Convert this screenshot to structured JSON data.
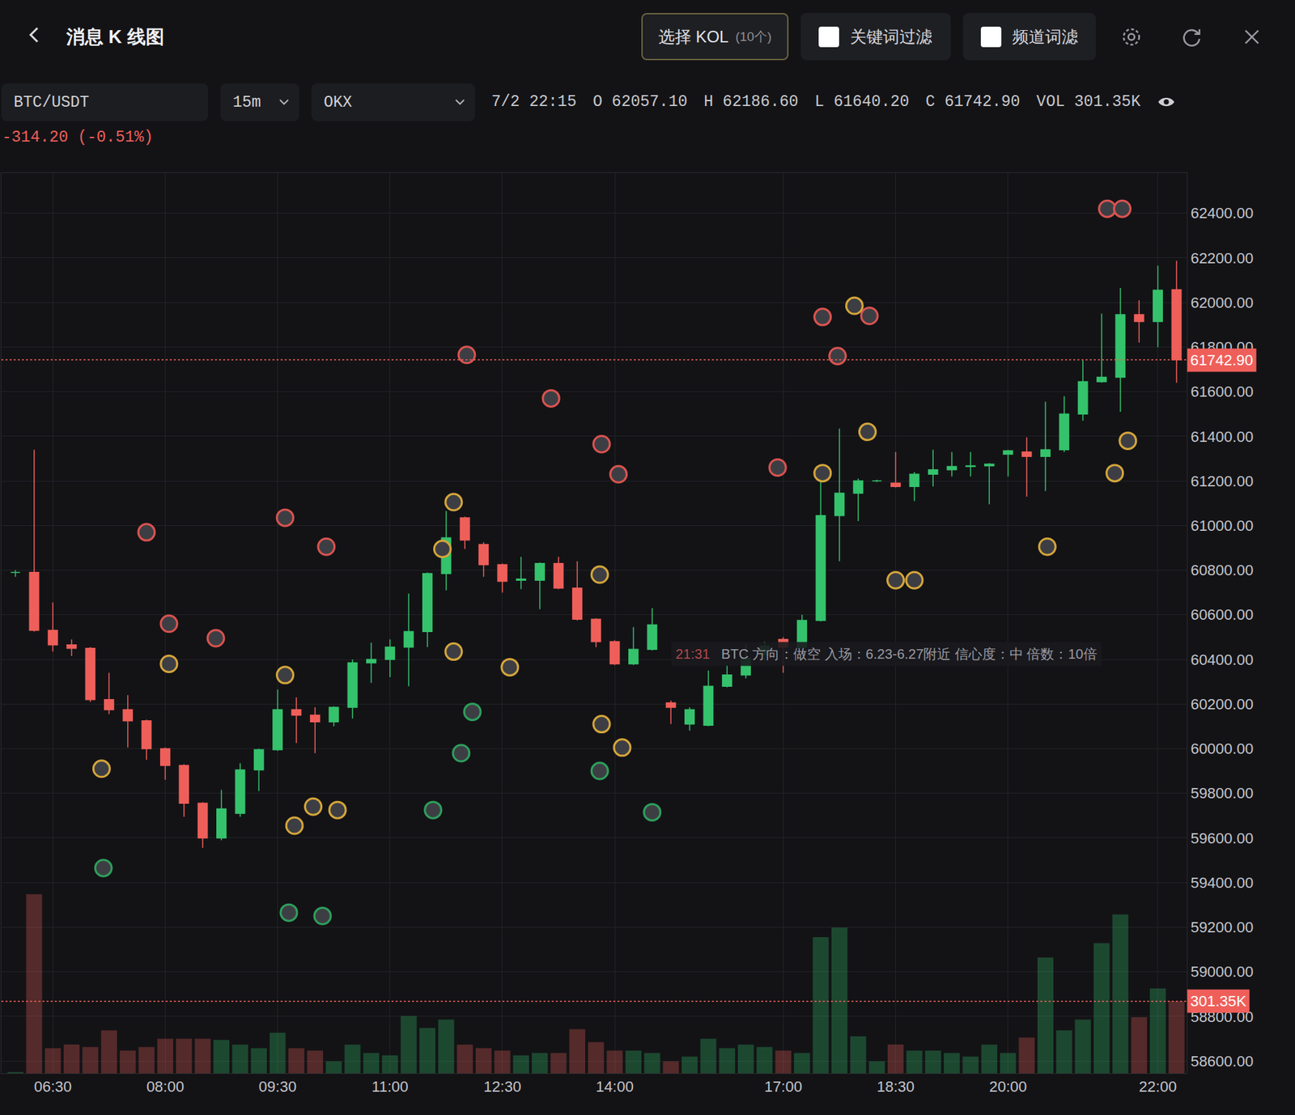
{
  "header": {
    "title": "消息 K 线图",
    "kol_button": "选择 KOL",
    "kol_count": "(10个)",
    "filters": [
      "关键词过滤",
      "频道词滤"
    ]
  },
  "toolbar": {
    "symbol": "BTC/USDT",
    "interval": "15m",
    "exchange": "OKX",
    "time": "7/2 22:15",
    "ohlcv": [
      {
        "label": "O",
        "value": "62057.10"
      },
      {
        "label": "H",
        "value": "62186.60"
      },
      {
        "label": "L",
        "value": "61640.20"
      },
      {
        "label": "C",
        "value": "61742.90"
      },
      {
        "label": "VOL",
        "value": "301.35K"
      }
    ],
    "change": "-314.20 (-0.51%)"
  },
  "chart_data": {
    "type": "candlestick",
    "categories": [
      null,
      null,
      "06:30",
      null,
      null,
      null,
      null,
      null,
      "08:00",
      null,
      null,
      null,
      null,
      null,
      "09:30",
      null,
      null,
      null,
      null,
      null,
      "11:00",
      null,
      null,
      null,
      null,
      null,
      "12:30",
      null,
      null,
      null,
      null,
      null,
      "14:00",
      null,
      null,
      null,
      null,
      null,
      null,
      null,
      null,
      "17:00",
      null,
      null,
      null,
      null,
      null,
      "18:30",
      null,
      null,
      null,
      null,
      null,
      "20:00",
      null,
      null,
      null,
      null,
      null,
      null,
      null,
      "22:00",
      null
    ],
    "series": [
      {
        "name": "O",
        "values": [
          60790,
          60790,
          60530,
          60465,
          60450,
          60220,
          60175,
          60125,
          60000,
          59925,
          59755,
          59600,
          59710,
          59905,
          59995,
          60175,
          60150,
          60120,
          60185,
          60385,
          60400,
          60455,
          60525,
          60785,
          61035,
          60915,
          60825,
          60755,
          60755,
          60830,
          60720,
          60580,
          60480,
          60380,
          60445,
          60205,
          60110,
          60105,
          60280,
          60330,
          60420,
          60490,
          60455,
          60575,
          61045,
          61145,
          61200,
          61190,
          61175,
          61230,
          61250,
          61265,
          61268,
          61320,
          61330,
          61310,
          61340,
          61500,
          61645,
          61665,
          61945,
          61915,
          62057.1
        ]
      },
      {
        "name": "H",
        "values": [
          60800,
          61340,
          60655,
          60490,
          60455,
          60340,
          60240,
          60130,
          60005,
          59930,
          59760,
          59815,
          59935,
          60000,
          60265,
          60230,
          60185,
          60190,
          60400,
          60475,
          60490,
          60695,
          60790,
          61065,
          61040,
          60925,
          60830,
          60860,
          60835,
          60860,
          60840,
          60585,
          60485,
          60545,
          60630,
          60215,
          60185,
          60350,
          60375,
          60470,
          60480,
          60500,
          60600,
          61210,
          61435,
          61210,
          61205,
          61330,
          61240,
          61340,
          61330,
          61330,
          61280,
          61340,
          61395,
          61555,
          61580,
          61740,
          61950,
          62065,
          62010,
          62165,
          62186.6
        ]
      },
      {
        "name": "L",
        "values": [
          60770,
          60525,
          60435,
          60415,
          60210,
          60155,
          60005,
          59950,
          59860,
          59695,
          59555,
          59590,
          59695,
          59810,
          59990,
          60025,
          59980,
          60100,
          60135,
          60295,
          60320,
          60280,
          60455,
          60710,
          60895,
          60770,
          60700,
          60715,
          60625,
          60715,
          60575,
          60455,
          60375,
          60375,
          60440,
          60110,
          60080,
          60100,
          60275,
          60315,
          60395,
          60340,
          60450,
          60570,
          60840,
          61020,
          61195,
          61170,
          61110,
          61175,
          61220,
          61220,
          61095,
          61220,
          61130,
          61155,
          61330,
          61470,
          61640,
          61510,
          61820,
          61800,
          61640.2
        ]
      },
      {
        "name": "C",
        "values": [
          60790,
          60530,
          60465,
          60450,
          60220,
          60175,
          60125,
          60000,
          59925,
          59755,
          59600,
          59730,
          59905,
          59995,
          60175,
          60150,
          60120,
          60185,
          60385,
          60400,
          60455,
          60525,
          60785,
          60945,
          60935,
          60825,
          60750,
          60760,
          60830,
          60720,
          60580,
          60480,
          60380,
          60445,
          60555,
          60185,
          60175,
          60280,
          60330,
          60405,
          60460,
          60455,
          60575,
          61045,
          61145,
          61200,
          61200,
          61175,
          61230,
          61250,
          61265,
          61268,
          61275,
          61335,
          61310,
          61340,
          61500,
          61645,
          61665,
          61945,
          61915,
          62055,
          61742.9
        ]
      },
      {
        "name": "VOL",
        "type": "bar",
        "axis": "y2",
        "values": [
          5,
          750,
          105,
          120,
          110,
          180,
          95,
          110,
          145,
          145,
          145,
          140,
          120,
          105,
          170,
          105,
          95,
          50,
          120,
          85,
          75,
          240,
          190,
          225,
          120,
          105,
          95,
          75,
          85,
          85,
          185,
          130,
          95,
          95,
          85,
          50,
          70,
          145,
          105,
          120,
          110,
          95,
          85,
          570,
          610,
          155,
          50,
          120,
          95,
          95,
          85,
          70,
          120,
          85,
          150,
          485,
          180,
          225,
          545,
          665,
          235,
          355,
          301.35
        ]
      }
    ],
    "colors": [
      "#35c26c",
      "#ef5f5a"
    ],
    "xlim": [
      -0.75,
      62.55
    ],
    "ylim": [
      58545,
      62580
    ],
    "yticks": [
      {
        "value": 58600,
        "label": "58600.00"
      },
      {
        "value": 58800,
        "label": "58800.00"
      },
      {
        "value": 59000,
        "label": "59000.00"
      },
      {
        "value": 59200,
        "label": "59200.00"
      },
      {
        "value": 59400,
        "label": "59400.00"
      },
      {
        "value": 59600,
        "label": "59600.00"
      },
      {
        "value": 59800,
        "label": "59800.00"
      },
      {
        "value": 60000,
        "label": "60000.00"
      },
      {
        "value": 60200,
        "label": "60200.00"
      },
      {
        "value": 60400,
        "label": "60400.00"
      },
      {
        "value": 60600,
        "label": "60600.00"
      },
      {
        "value": 60800,
        "label": "60800.00"
      },
      {
        "value": 61000,
        "label": "61000.00"
      },
      {
        "value": 61200,
        "label": "61200.00"
      },
      {
        "value": 61400,
        "label": "61400.00"
      },
      {
        "value": 61600,
        "label": "61600.00"
      },
      {
        "value": 61800,
        "label": "61800.00"
      },
      {
        "value": 62000,
        "label": "62000.00"
      },
      {
        "value": 62200,
        "label": "62200.00"
      },
      {
        "value": 62400,
        "label": "62400.00"
      }
    ],
    "y2lim": [
      0,
      3770
    ],
    "grid": true,
    "price_line": {
      "value": 61742.9,
      "label": "61742.90",
      "color": "#ef5f5a"
    },
    "volume_line": {
      "value": 301.35,
      "label": "301.35K",
      "color": "#ef5f5a"
    },
    "annotations": [
      {
        "x": 35,
        "y": 60425,
        "time": "21:31",
        "text": "BTC 方向：做空 入场：6.23-6.27附近 信心度：中 倍数：10倍"
      }
    ],
    "messages": [
      {
        "x": 7,
        "y": 60970,
        "color": "#d9534f"
      },
      {
        "x": 14.4,
        "y": 61035,
        "color": "#d9534f"
      },
      {
        "x": 16.6,
        "y": 60905,
        "color": "#d9534f"
      },
      {
        "x": 8.2,
        "y": 60560,
        "color": "#d9534f"
      },
      {
        "x": 10.7,
        "y": 60495,
        "color": "#d9534f"
      },
      {
        "x": 24.1,
        "y": 61765,
        "color": "#d9534f"
      },
      {
        "x": 28.6,
        "y": 61570,
        "color": "#d9534f"
      },
      {
        "x": 31.3,
        "y": 61365,
        "color": "#d9534f"
      },
      {
        "x": 32.2,
        "y": 61230,
        "color": "#d9534f"
      },
      {
        "x": 40.7,
        "y": 61260,
        "color": "#d9534f"
      },
      {
        "x": 43.1,
        "y": 61935,
        "color": "#d9534f"
      },
      {
        "x": 43.9,
        "y": 61760,
        "color": "#d9534f"
      },
      {
        "x": 45.6,
        "y": 61940,
        "color": "#d9534f"
      },
      {
        "x": 58.3,
        "y": 62420,
        "color": "#d9534f"
      },
      {
        "x": 59.1,
        "y": 62420,
        "color": "#d9534f"
      },
      {
        "x": 8.2,
        "y": 60380,
        "color": "#d4a53a"
      },
      {
        "x": 4.6,
        "y": 59910,
        "color": "#d4a53a"
      },
      {
        "x": 14.4,
        "y": 60330,
        "color": "#d4a53a"
      },
      {
        "x": 15.9,
        "y": 59740,
        "color": "#d4a53a"
      },
      {
        "x": 17.2,
        "y": 59725,
        "color": "#d4a53a"
      },
      {
        "x": 14.9,
        "y": 59655,
        "color": "#d4a53a"
      },
      {
        "x": 23.4,
        "y": 61105,
        "color": "#d4a53a"
      },
      {
        "x": 22.8,
        "y": 60895,
        "color": "#d4a53a"
      },
      {
        "x": 23.4,
        "y": 60435,
        "color": "#d4a53a"
      },
      {
        "x": 26.4,
        "y": 60365,
        "color": "#d4a53a"
      },
      {
        "x": 31.2,
        "y": 60780,
        "color": "#d4a53a"
      },
      {
        "x": 31.3,
        "y": 60110,
        "color": "#d4a53a"
      },
      {
        "x": 32.4,
        "y": 60005,
        "color": "#d4a53a"
      },
      {
        "x": 43.1,
        "y": 61235,
        "color": "#d4a53a"
      },
      {
        "x": 44.8,
        "y": 61985,
        "color": "#d4a53a"
      },
      {
        "x": 45.5,
        "y": 61420,
        "color": "#d4a53a"
      },
      {
        "x": 47.0,
        "y": 60755,
        "color": "#d4a53a"
      },
      {
        "x": 48.0,
        "y": 60755,
        "color": "#d4a53a"
      },
      {
        "x": 55.1,
        "y": 60905,
        "color": "#d4a53a"
      },
      {
        "x": 58.7,
        "y": 61235,
        "color": "#d4a53a"
      },
      {
        "x": 59.4,
        "y": 61380,
        "color": "#d4a53a"
      },
      {
        "x": 4.7,
        "y": 59465,
        "color": "#2e9e5b"
      },
      {
        "x": 14.6,
        "y": 59265,
        "color": "#2e9e5b"
      },
      {
        "x": 16.4,
        "y": 59250,
        "color": "#2e9e5b"
      },
      {
        "x": 24.4,
        "y": 60165,
        "color": "#2e9e5b"
      },
      {
        "x": 23.8,
        "y": 59980,
        "color": "#2e9e5b"
      },
      {
        "x": 22.3,
        "y": 59725,
        "color": "#2e9e5b"
      },
      {
        "x": 31.2,
        "y": 59900,
        "color": "#2e9e5b"
      },
      {
        "x": 34.0,
        "y": 59715,
        "color": "#2e9e5b"
      }
    ]
  }
}
